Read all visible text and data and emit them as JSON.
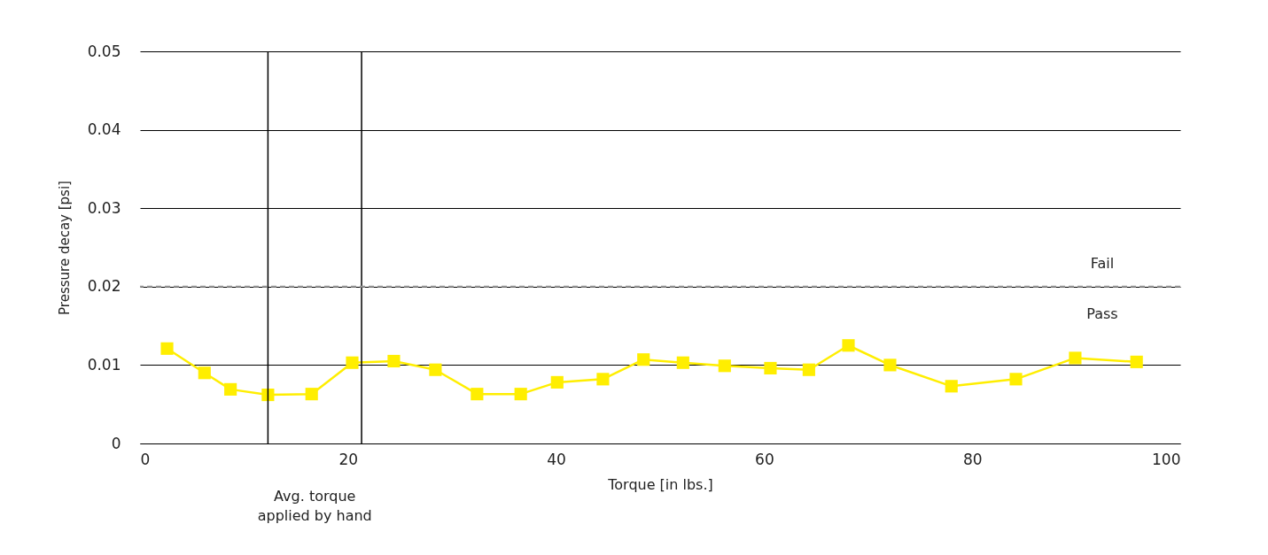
{
  "chart_data": {
    "type": "line",
    "xlabel": "Torque [in lbs.]",
    "ylabel": "Pressure decay [psi]",
    "x": [
      2.6,
      6.2,
      8.7,
      12.3,
      16.5,
      20.4,
      24.4,
      28.4,
      32.4,
      36.6,
      40.1,
      44.5,
      48.4,
      52.2,
      56.2,
      60.6,
      64.3,
      68.1,
      72.1,
      78.0,
      84.2,
      89.9,
      95.8
    ],
    "series": [
      {
        "color": "#ffee00",
        "values": [
          0.0121,
          0.009,
          0.0069,
          0.0062,
          0.0063,
          0.0103,
          0.0105,
          0.0094,
          0.0063,
          0.0063,
          0.0078,
          0.0082,
          0.0107,
          0.0103,
          0.0099,
          0.0096,
          0.0094,
          0.0125,
          0.01,
          0.0073,
          0.0082,
          0.0109,
          0.0104
        ]
      }
    ],
    "marker": "square",
    "line_style": "solid",
    "xlim": [
      0,
      100
    ],
    "xticks": [
      0,
      20,
      40,
      60,
      80,
      100
    ],
    "ylim": [
      0,
      0.05
    ],
    "yticks": [
      {
        "value": 0,
        "label": "0"
      },
      {
        "value": 0.01,
        "label": "0.01"
      },
      {
        "value": 0.02,
        "label": "0.02"
      },
      {
        "value": 0.03,
        "label": "0.03"
      },
      {
        "value": 0.04,
        "label": "0.04"
      },
      {
        "value": 0.05,
        "label": "0.05"
      }
    ],
    "grid": "y",
    "ref_lines": [
      {
        "axis": "x",
        "value": 12.3,
        "label": null,
        "color": "#000000"
      },
      {
        "axis": "x",
        "value": 21.3,
        "label": null,
        "color": "#000000"
      },
      {
        "axis": "y",
        "value": 0.02,
        "label": null,
        "color": "#999999",
        "line_style": "dashed"
      }
    ],
    "annotations": [
      "Avg. torque\napplied by hand",
      "Fail",
      "Pass"
    ]
  }
}
